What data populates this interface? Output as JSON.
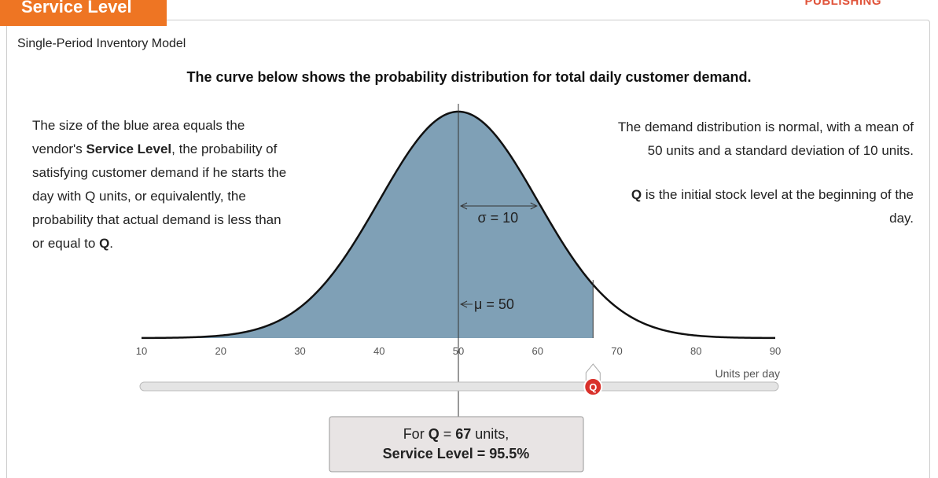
{
  "header": {
    "tab": "Service Level",
    "publisher": "PUBLISHING"
  },
  "subtitle": "Single-Period Inventory Model",
  "heading": "The curve below shows the probability distribution for total daily customer demand.",
  "left_text": [
    [
      {
        "text": "The size of the blue area equals the",
        "bold": false
      }
    ],
    [
      {
        "text": "vendor's ",
        "bold": false
      },
      {
        "text": "Service Level",
        "bold": true
      },
      {
        "text": ", the probability of",
        "bold": false
      }
    ],
    [
      {
        "text": "satisfying customer demand if he starts the",
        "bold": false
      }
    ],
    [
      {
        "text": "day with Q units, or equivalently, the",
        "bold": false
      }
    ],
    [
      {
        "text": "probability that actual demand is less than",
        "bold": false
      }
    ],
    [
      {
        "text": "or equal to ",
        "bold": false
      },
      {
        "text": "Q",
        "bold": true
      },
      {
        "text": ".",
        "bold": false
      }
    ]
  ],
  "right_text_1": [
    [
      {
        "text": "The demand distribution is normal, with a mean of",
        "bold": false
      }
    ],
    [
      {
        "text": "50 units and a standard deviation of 10 units.",
        "bold": false
      }
    ]
  ],
  "right_text_2": [
    [
      {
        "text": "Q",
        "bold": true
      },
      {
        "text": " is the initial stock level at the beginning of the",
        "bold": false
      }
    ],
    [
      {
        "text": "day.",
        "bold": false
      }
    ]
  ],
  "chart_data": {
    "type": "normal-area",
    "mean": 50,
    "sd": 10,
    "q": 67,
    "xlim": [
      10,
      90
    ],
    "xticks": [
      10,
      20,
      30,
      40,
      50,
      60,
      70,
      80,
      90
    ],
    "xlabel": "Units per day",
    "sigma_label": "σ = 10",
    "mu_label": "μ = 50",
    "color": "#7fa0b6",
    "handle_label": "Q"
  },
  "result": [
    [
      {
        "text": "For ",
        "bold": false
      },
      {
        "text": "Q",
        "bold": true
      },
      {
        "text": " = ",
        "bold": false
      },
      {
        "text": "67",
        "bold": true
      },
      {
        "text": " units,",
        "bold": false
      }
    ],
    [
      {
        "text": "Service Level = 95.5%",
        "bold": true
      }
    ]
  ]
}
